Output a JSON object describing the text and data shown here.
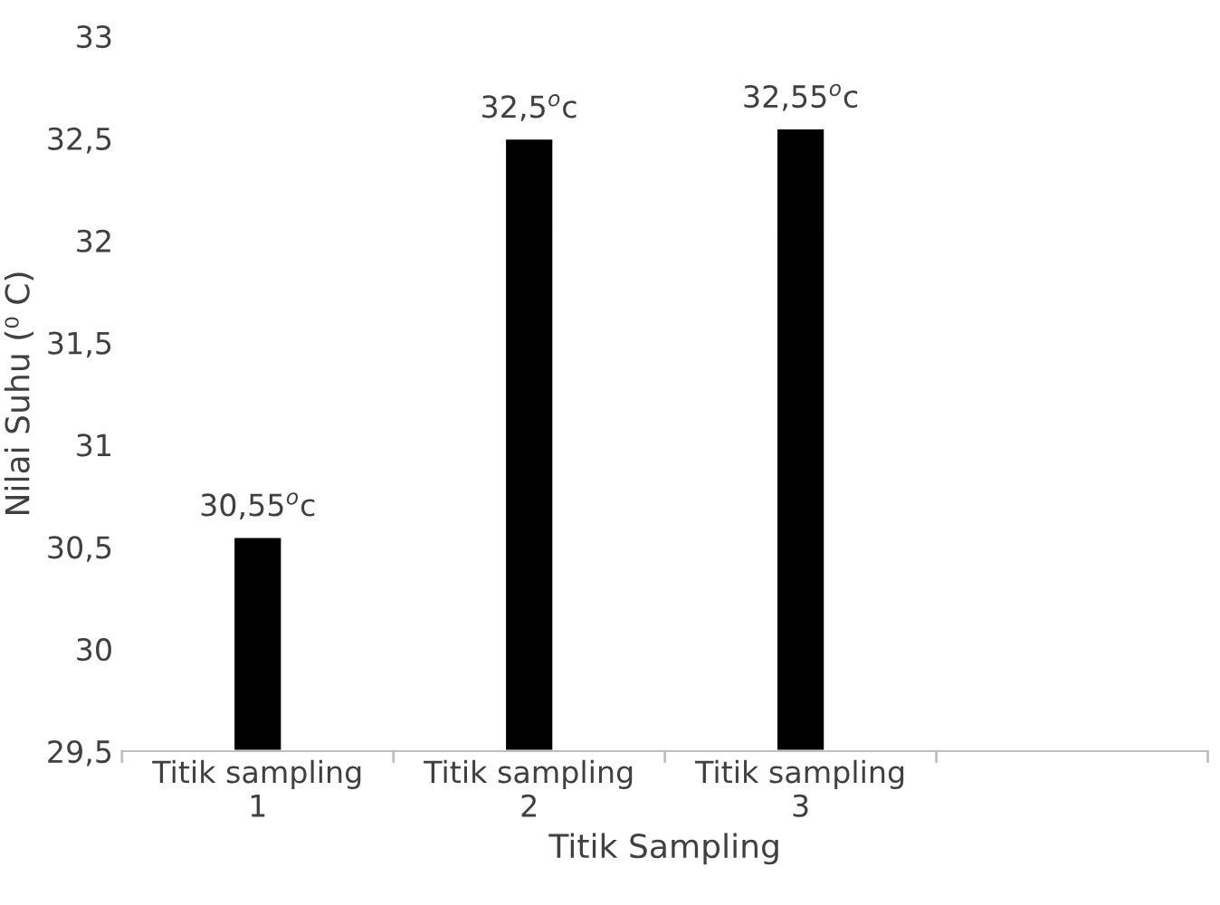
{
  "chart_data": {
    "type": "bar",
    "xlabel": "Titik Sampling",
    "ylabel": "Nilai Suhu (⁰ C)",
    "categories": [
      "Titik sampling\n1",
      "Titik sampling\n2",
      "Titik sampling\n3",
      null
    ],
    "values": [
      30.55,
      32.5,
      32.55,
      null
    ],
    "value_labels": [
      "30,55$^{o}$c",
      "32,5$^{o}$c",
      "32,55$^{o}$c",
      null
    ],
    "color": "#000000",
    "ylim": [
      29.5,
      33
    ],
    "yticks": [
      {
        "value": 29.5,
        "label": "29,5"
      },
      30,
      {
        "value": 30.5,
        "label": "30,5"
      },
      31,
      {
        "value": 31.5,
        "label": "31,5"
      },
      32,
      {
        "value": 32.5,
        "label": "32,5"
      },
      33
    ],
    "grid": false,
    "legend": false
  }
}
